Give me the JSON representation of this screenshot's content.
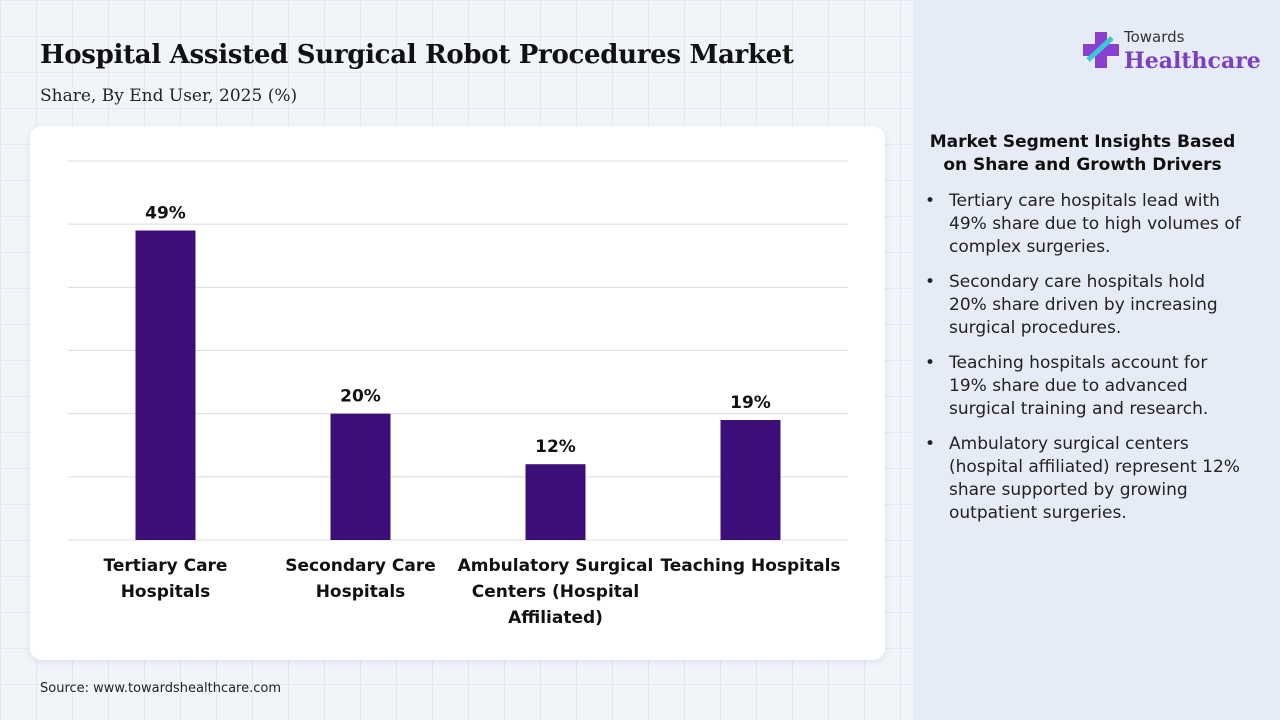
{
  "header": {
    "title": "Hospital Assisted Surgical Robot Procedures Market",
    "subtitle": "Share, By End User, 2025 (%)"
  },
  "logo": {
    "top": "Towards",
    "bottom": "Healthcare"
  },
  "chart_data": {
    "type": "bar",
    "categories": [
      "Tertiary Care Hospitals",
      "Secondary Care Hospitals",
      "Ambulatory Surgical Centers (Hospital Affiliated)",
      "Teaching Hospitals"
    ],
    "values": [
      49,
      20,
      12,
      19
    ],
    "value_labels": [
      "49%",
      "20%",
      "12%",
      "19%"
    ],
    "color": "#3c0f78",
    "ylim": [
      0,
      60
    ],
    "yticks": [
      0,
      10,
      20,
      30,
      40,
      50,
      60
    ],
    "grid": true
  },
  "insights": {
    "title": "Market Segment Insights Based on Share and Growth Drivers",
    "items": [
      "Tertiary care hospitals lead with 49% share due to high volumes of complex surgeries.",
      "Secondary care hospitals hold 20% share driven by increasing surgical procedures.",
      "Teaching hospitals account for 19% share due to advanced surgical training and research.",
      "Ambulatory surgical centers (hospital affiliated) represent 12% share supported by growing outpatient surgeries."
    ]
  },
  "source": "Source: www.towardshealthcare.com"
}
